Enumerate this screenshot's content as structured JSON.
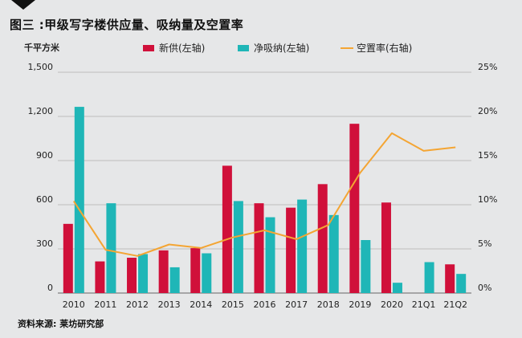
{
  "title": "图三 :甲级写字楼供应量、吸纳量及空置率",
  "source": "资料来源: 莱坊研究部",
  "chart_data": {
    "type": "bar",
    "categories": [
      "2010",
      "2011",
      "2012",
      "2013",
      "2014",
      "2015",
      "2016",
      "2017",
      "2018",
      "2019",
      "2020",
      "21Q1",
      "21Q2"
    ],
    "ylabel_left": "千平方米",
    "y_left_ticks": [
      "0",
      "300",
      "600",
      "900",
      "1,200",
      "1,500"
    ],
    "y_left_range": [
      0,
      1500
    ],
    "y_right_ticks": [
      "0%",
      "5%",
      "10%",
      "15%",
      "20%",
      "25%"
    ],
    "y_right_range": [
      0,
      25
    ],
    "series": [
      {
        "name": "新供(左轴)",
        "kind": "bar",
        "axis": "left",
        "color": "#d0103a",
        "values": [
          470,
          215,
          240,
          290,
          305,
          865,
          610,
          580,
          740,
          1150,
          615,
          null,
          195
        ]
      },
      {
        "name": "净吸纳(左轴)",
        "kind": "bar",
        "axis": "left",
        "color": "#1fb6b7",
        "values": [
          1265,
          610,
          265,
          175,
          270,
          625,
          515,
          635,
          530,
          360,
          70,
          210,
          130
        ]
      },
      {
        "name": "空置率(右轴)",
        "kind": "line",
        "axis": "right",
        "color": "#f4a533",
        "values": [
          10.4,
          4.9,
          4.2,
          5.5,
          5.1,
          6.3,
          7.1,
          6.1,
          7.7,
          13.6,
          18.1,
          16.1,
          16.5
        ]
      }
    ],
    "legend_position": "top",
    "grid": "horizontal"
  }
}
